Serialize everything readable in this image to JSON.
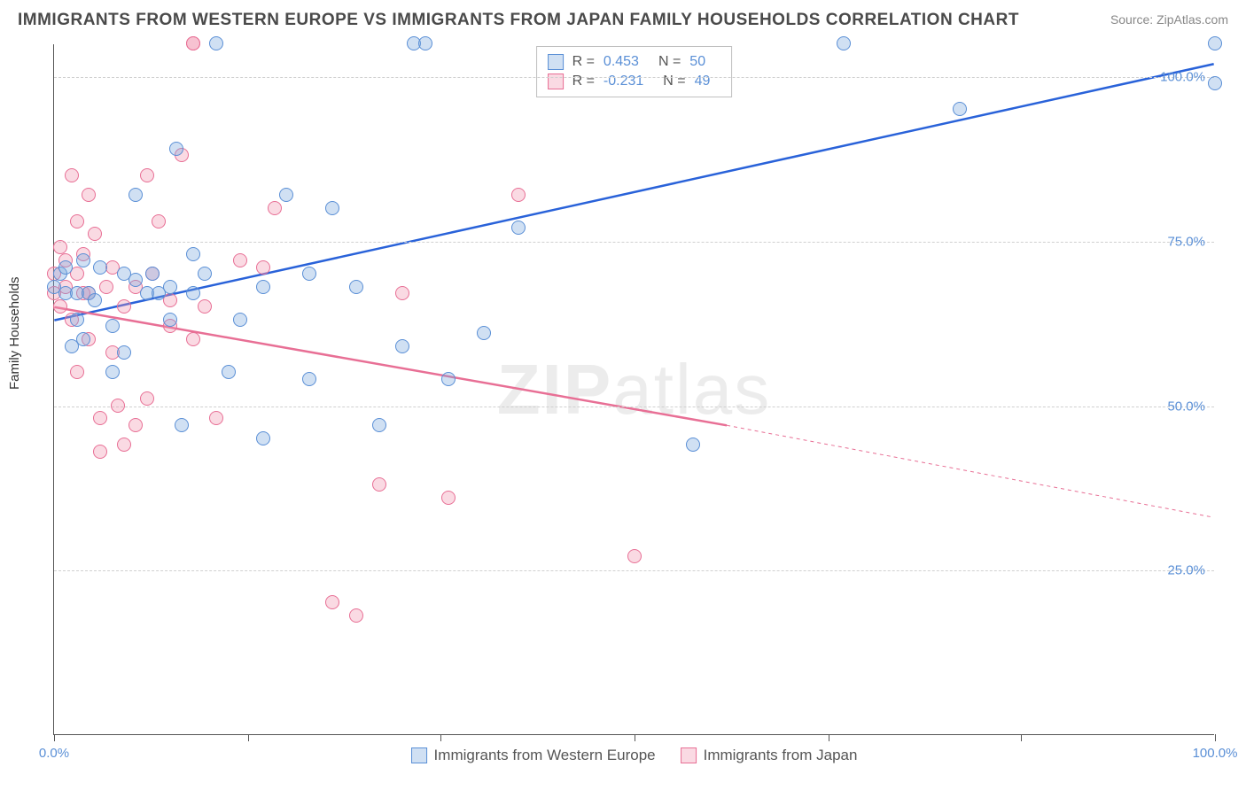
{
  "title": "IMMIGRANTS FROM WESTERN EUROPE VS IMMIGRANTS FROM JAPAN FAMILY HOUSEHOLDS CORRELATION CHART",
  "source": "Source: ZipAtlas.com",
  "ylabel": "Family Households",
  "watermark_zip": "ZIP",
  "watermark_atlas": "atlas",
  "chart": {
    "type": "scatter",
    "xlim": [
      0,
      100
    ],
    "ylim": [
      0,
      105
    ],
    "background_color": "#ffffff",
    "grid_color": "#d0d0d0",
    "axis_color": "#555555",
    "tick_label_color": "#5a8fd6",
    "tick_label_fontsize": 15,
    "yticks": [
      25,
      50,
      75,
      100
    ],
    "ytick_labels": [
      "25.0%",
      "50.0%",
      "75.0%",
      "100.0%"
    ],
    "xticks": [
      0,
      16.7,
      33.3,
      50,
      66.7,
      83.3,
      100
    ],
    "xtick_labels_shown": {
      "0": "0.0%",
      "100": "100.0%"
    },
    "marker_radius": 8,
    "marker_stroke_width": 1.5
  },
  "series": {
    "blue": {
      "label": "Immigrants from Western Europe",
      "fill": "rgba(120,165,220,0.35)",
      "stroke": "#5a8fd6",
      "r_value": "0.453",
      "n_value": "50",
      "trend": {
        "x1": 0,
        "y1": 63,
        "x2": 100,
        "y2": 102,
        "color": "#2962d9",
        "width": 2.5
      },
      "points": [
        [
          0,
          68
        ],
        [
          0.5,
          70
        ],
        [
          1,
          67
        ],
        [
          1,
          71
        ],
        [
          1.5,
          59
        ],
        [
          2,
          67
        ],
        [
          2,
          63
        ],
        [
          2.5,
          72
        ],
        [
          2.5,
          60
        ],
        [
          3,
          67
        ],
        [
          3.5,
          66
        ],
        [
          4,
          71
        ],
        [
          5,
          62
        ],
        [
          5,
          55
        ],
        [
          6,
          70
        ],
        [
          6,
          58
        ],
        [
          7,
          82
        ],
        [
          7,
          69
        ],
        [
          8,
          67
        ],
        [
          8.5,
          70
        ],
        [
          9,
          67
        ],
        [
          10,
          63
        ],
        [
          10,
          68
        ],
        [
          10.5,
          89
        ],
        [
          11,
          47
        ],
        [
          12,
          67
        ],
        [
          12,
          73
        ],
        [
          13,
          70
        ],
        [
          14,
          105
        ],
        [
          15,
          55
        ],
        [
          16,
          63
        ],
        [
          18,
          68
        ],
        [
          18,
          45
        ],
        [
          20,
          82
        ],
        [
          22,
          70
        ],
        [
          22,
          54
        ],
        [
          24,
          80
        ],
        [
          26,
          68
        ],
        [
          28,
          47
        ],
        [
          30,
          59
        ],
        [
          31,
          105
        ],
        [
          32,
          105
        ],
        [
          34,
          54
        ],
        [
          37,
          61
        ],
        [
          40,
          77
        ],
        [
          55,
          44
        ],
        [
          68,
          105
        ],
        [
          78,
          95
        ],
        [
          100,
          105
        ],
        [
          100,
          99
        ]
      ]
    },
    "pink": {
      "label": "Immigrants from Japan",
      "fill": "rgba(240,150,175,0.35)",
      "stroke": "#e86f95",
      "r_value": "-0.231",
      "n_value": "49",
      "trend_solid": {
        "x1": 0,
        "y1": 65,
        "x2": 58,
        "y2": 47,
        "color": "#e86f95",
        "width": 2.5
      },
      "trend_dashed": {
        "x1": 58,
        "y1": 47,
        "x2": 100,
        "y2": 33,
        "color": "#e86f95",
        "width": 1
      },
      "points": [
        [
          0,
          67
        ],
        [
          0,
          70
        ],
        [
          0.5,
          74
        ],
        [
          0.5,
          65
        ],
        [
          1,
          72
        ],
        [
          1,
          68
        ],
        [
          1.5,
          85
        ],
        [
          1.5,
          63
        ],
        [
          2,
          78
        ],
        [
          2,
          70
        ],
        [
          2,
          55
        ],
        [
          2.5,
          67
        ],
        [
          2.5,
          73
        ],
        [
          3,
          82
        ],
        [
          3,
          67
        ],
        [
          3,
          60
        ],
        [
          3.5,
          76
        ],
        [
          4,
          48
        ],
        [
          4,
          43
        ],
        [
          4.5,
          68
        ],
        [
          5,
          58
        ],
        [
          5,
          71
        ],
        [
          5.5,
          50
        ],
        [
          6,
          44
        ],
        [
          6,
          65
        ],
        [
          7,
          68
        ],
        [
          7,
          47
        ],
        [
          8,
          51
        ],
        [
          8.5,
          70
        ],
        [
          9,
          78
        ],
        [
          10,
          66
        ],
        [
          10,
          62
        ],
        [
          11,
          88
        ],
        [
          12,
          105
        ],
        [
          12,
          60
        ],
        [
          13,
          65
        ],
        [
          14,
          48
        ],
        [
          16,
          72
        ],
        [
          18,
          71
        ],
        [
          19,
          80
        ],
        [
          24,
          20
        ],
        [
          26,
          18
        ],
        [
          28,
          38
        ],
        [
          30,
          67
        ],
        [
          34,
          36
        ],
        [
          40,
          82
        ],
        [
          50,
          27
        ],
        [
          12,
          105
        ],
        [
          8,
          85
        ]
      ]
    }
  },
  "legend_labels": {
    "R": "R =",
    "N": "N ="
  }
}
